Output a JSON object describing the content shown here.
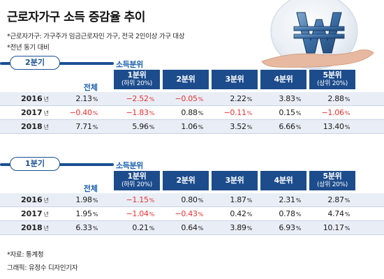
{
  "header": {
    "title": "근로자가구 소득 증감율 추이",
    "note1": "*근로자가구: 가구주가 임금근로자인 가구, 전국 2인이상 가구 대상",
    "note2": "*전년 동기 대비"
  },
  "colors": {
    "primary": "#1c4c8c",
    "accent_text": "#1a5fae",
    "negative": "#e8312f",
    "row_shade": "#e9eef6"
  },
  "icons": [
    "won-sign-globe-illustration",
    "hand-illustration"
  ],
  "chart_data": [
    {
      "type": "table",
      "section_label": "2분기",
      "group_label": "소득분위",
      "total_label": "전체",
      "unit": "%",
      "year_unit": "년",
      "columns": [
        {
          "label": "1분위",
          "sub": "(하위 20%)"
        },
        {
          "label": "2분위",
          "sub": ""
        },
        {
          "label": "3분위",
          "sub": ""
        },
        {
          "label": "4분위",
          "sub": ""
        },
        {
          "label": "5분위",
          "sub": "(상위 20%)"
        }
      ],
      "rows": [
        {
          "year": "2016",
          "total": "2.13",
          "values": [
            "-2.52",
            "-0.05",
            "2.22",
            "3.83",
            "2.88"
          ]
        },
        {
          "year": "2017",
          "total": "-0.40",
          "values": [
            "-1.83",
            "0.88",
            "-0.11",
            "0.15",
            "-1.06"
          ]
        },
        {
          "year": "2018",
          "total": "7.71",
          "values": [
            "5.96",
            "1.06",
            "3.52",
            "6.66",
            "13.40"
          ]
        }
      ]
    },
    {
      "type": "table",
      "section_label": "1분기",
      "group_label": "소득분위",
      "total_label": "전체",
      "unit": "%",
      "year_unit": "년",
      "columns": [
        {
          "label": "1분위",
          "sub": "(하위 20%)"
        },
        {
          "label": "2분위",
          "sub": ""
        },
        {
          "label": "3분위",
          "sub": ""
        },
        {
          "label": "4분위",
          "sub": ""
        },
        {
          "label": "5분위",
          "sub": "(상위 20%)"
        }
      ],
      "rows": [
        {
          "year": "2016",
          "total": "1.98",
          "values": [
            "-1.15",
            "0.80",
            "1.87",
            "2.31",
            "2.87"
          ]
        },
        {
          "year": "2017",
          "total": "1.95",
          "values": [
            "-1.04",
            "-0.43",
            "0.42",
            "0.78",
            "4.74"
          ]
        },
        {
          "year": "2018",
          "total": "6.33",
          "values": [
            "0.21",
            "0.64",
            "3.89",
            "6.93",
            "10.17"
          ]
        }
      ]
    }
  ],
  "footer": {
    "source": "*자료: 통계청",
    "credit": "그래픽: 유정수 디자인기자"
  }
}
